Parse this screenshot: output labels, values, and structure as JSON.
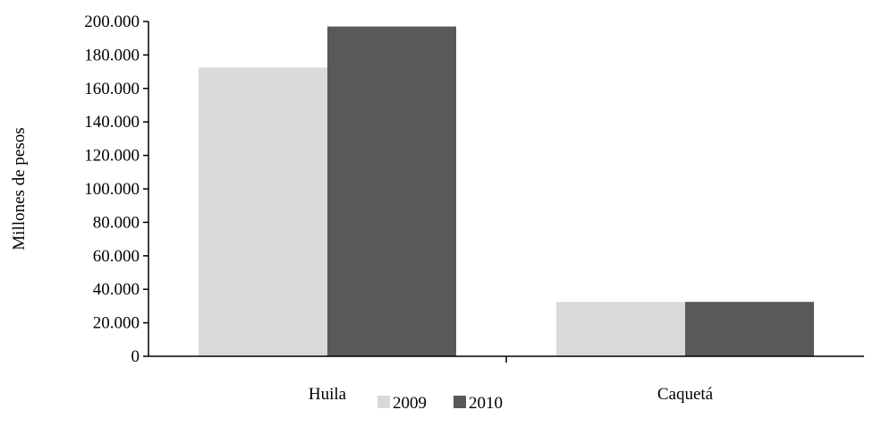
{
  "chart_data": {
    "type": "bar",
    "categories": [
      "Huila",
      "Caquetá"
    ],
    "series": [
      {
        "name": "2009",
        "values": [
          172500,
          32500
        ],
        "color": "#d9d9d9"
      },
      {
        "name": "2010",
        "values": [
          197000,
          32500
        ],
        "color": "#595959"
      }
    ],
    "ylabel": "Millones de pesos",
    "ylim": [
      0,
      200000
    ],
    "yticks": [
      0,
      20000,
      40000,
      60000,
      80000,
      100000,
      120000,
      140000,
      160000,
      180000,
      200000
    ],
    "ytick_labels": [
      "0",
      "20.000",
      "40.000",
      "60.000",
      "80.000",
      "100.000",
      "120.000",
      "140.000",
      "160.000",
      "180.000",
      "200.000"
    ],
    "grid": false,
    "legend": "bottom"
  }
}
